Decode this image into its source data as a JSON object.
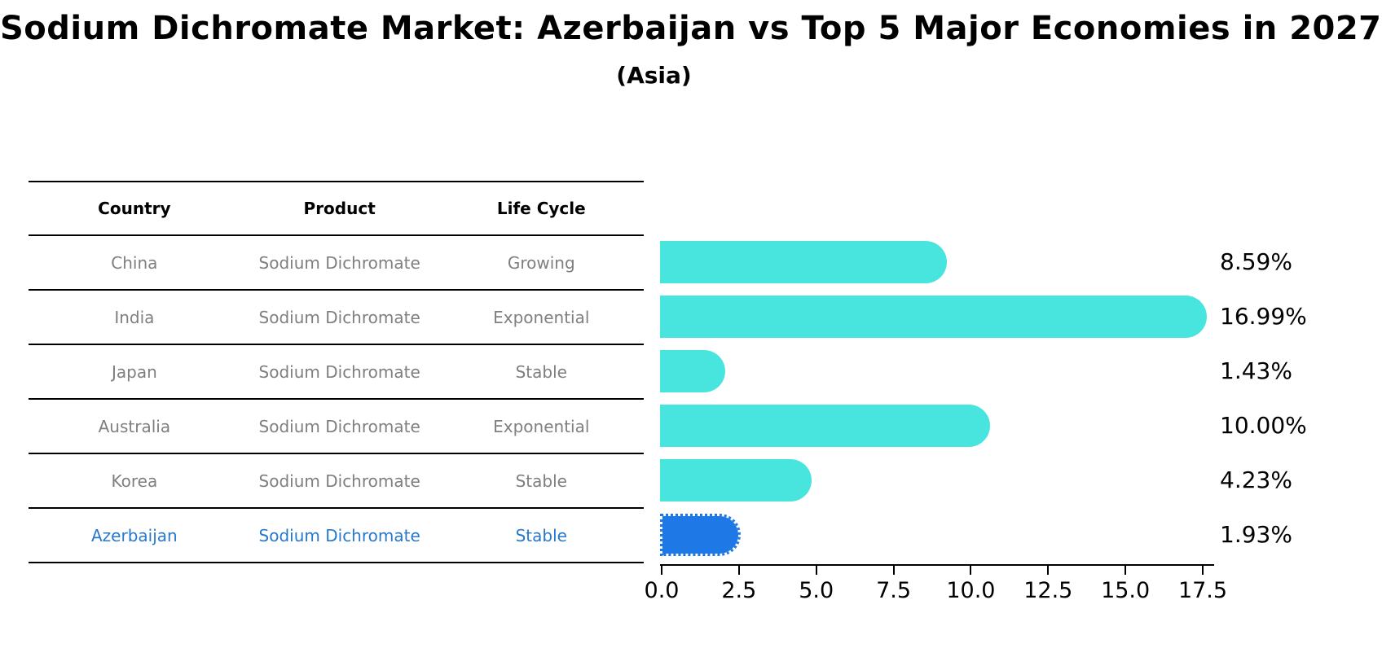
{
  "header": {
    "title": "Sodium Dichromate Market: Azerbaijan vs Top 5 Major Economies in 2027",
    "subtitle": "(Asia)"
  },
  "table": {
    "columns": [
      "Country",
      "Product",
      "Life Cycle"
    ],
    "rows": [
      {
        "country": "China",
        "product": "Sodium Dichromate",
        "life_cycle": "Growing",
        "highlight": false
      },
      {
        "country": "India",
        "product": "Sodium Dichromate",
        "life_cycle": "Exponential",
        "highlight": false
      },
      {
        "country": "Japan",
        "product": "Sodium Dichromate",
        "life_cycle": "Stable",
        "highlight": false
      },
      {
        "country": "Australia",
        "product": "Sodium Dichromate",
        "life_cycle": "Exponential",
        "highlight": false
      },
      {
        "country": "Korea",
        "product": "Sodium Dichromate",
        "life_cycle": "Stable",
        "highlight": false
      },
      {
        "country": "Azerbaijan",
        "product": "Sodium Dichromate",
        "life_cycle": "Stable",
        "highlight": true
      }
    ]
  },
  "chart_data": {
    "type": "bar",
    "orientation": "horizontal",
    "title": "Sodium Dichromate Market: Azerbaijan vs Top 5 Major Economies in 2027 (Asia)",
    "categories": [
      "China",
      "India",
      "Japan",
      "Australia",
      "Korea",
      "Azerbaijan"
    ],
    "values": [
      8.59,
      16.99,
      1.43,
      10.0,
      4.23,
      1.93
    ],
    "value_labels": [
      "8.59%",
      "16.99%",
      "1.43%",
      "10.00%",
      "4.23%",
      "1.93%"
    ],
    "highlight_category": "Azerbaijan",
    "xlabel": "",
    "ylabel": "",
    "xlim": [
      0,
      17.5
    ],
    "x_ticks": [
      "0.0",
      "2.5",
      "5.0",
      "7.5",
      "10.0",
      "12.5",
      "15.0",
      "17.5"
    ],
    "grid": false,
    "legend": false,
    "colors": {
      "bar": "#47E5DE",
      "highlight_bar": "#1E78E6",
      "highlight_text": "#2878CC",
      "row_text": "#7f7f7f",
      "text": "#000000"
    }
  }
}
